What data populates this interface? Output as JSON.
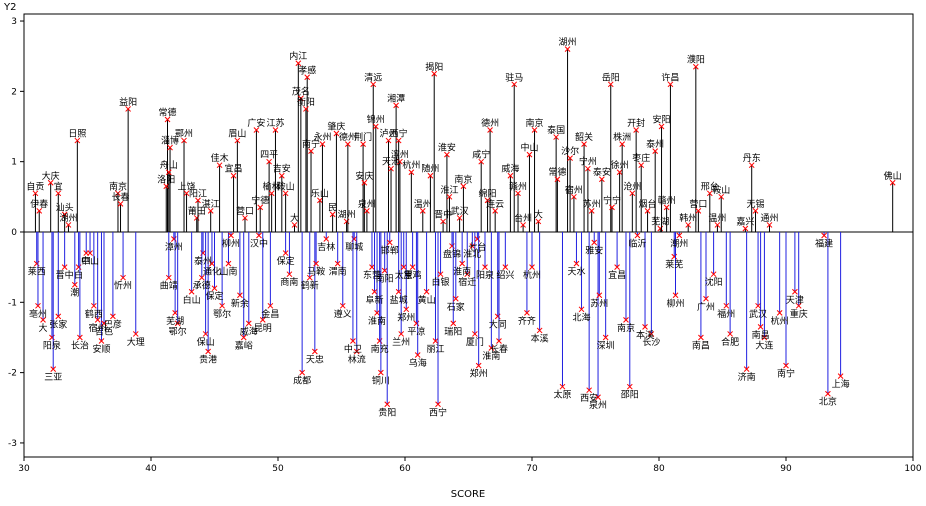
{
  "chart_data": {
    "type": "needle-scatter",
    "xlabel": "SCORE",
    "ylabel": "Y2",
    "xlim": [
      30,
      100
    ],
    "ylim": [
      -3.2,
      3.1
    ],
    "xticks": [
      "30",
      "40",
      "50",
      "60",
      "70",
      "80",
      "90",
      "100"
    ],
    "yticks": [
      "3",
      "2",
      "1",
      "0",
      "-1",
      "-2",
      "-3"
    ],
    "reference_line_y": 0,
    "grid": false,
    "colors": {
      "positive": "#000000",
      "negative": "#2020e0",
      "marker": "#ff0000"
    },
    "points": [
      {
        "x": 30.9,
        "y": 0.55,
        "label": "自贡"
      },
      {
        "x": 31.2,
        "y": 0.3,
        "label": "伊春"
      },
      {
        "x": 31.0,
        "y": -0.45,
        "label": "莱西"
      },
      {
        "x": 31.1,
        "y": -1.05,
        "label": "亳州"
      },
      {
        "x": 31.5,
        "y": -1.25,
        "label": "大"
      },
      {
        "x": 32.1,
        "y": 0.7,
        "label": "大庆"
      },
      {
        "x": 32.7,
        "y": 0.55,
        "label": "宜"
      },
      {
        "x": 32.2,
        "y": -1.5,
        "label": "阳泉"
      },
      {
        "x": 32.3,
        "y": -1.95,
        "label": "三亚"
      },
      {
        "x": 32.7,
        "y": -1.2,
        "label": "张家"
      },
      {
        "x": 33.2,
        "y": 0.25,
        "label": "汕头"
      },
      {
        "x": 33.2,
        "y": -0.5,
        "label": "晋中"
      },
      {
        "x": 33.5,
        "y": 0.1,
        "label": "湖州"
      },
      {
        "x": 34.2,
        "y": 1.3,
        "label": "日照"
      },
      {
        "x": 34.3,
        "y": -0.5,
        "label": "白"
      },
      {
        "x": 34.4,
        "y": -1.5,
        "label": "长治"
      },
      {
        "x": 34.0,
        "y": -0.75,
        "label": "潮"
      },
      {
        "x": 34.9,
        "y": -0.3,
        "label": "四"
      },
      {
        "x": 35.2,
        "y": -0.3,
        "label": "中山"
      },
      {
        "x": 35.5,
        "y": -1.05,
        "label": "鹤西"
      },
      {
        "x": 35.8,
        "y": -1.25,
        "label": "宿州"
      },
      {
        "x": 36.1,
        "y": -1.55,
        "label": "安顺"
      },
      {
        "x": 36.3,
        "y": -1.3,
        "label": "吉色"
      },
      {
        "x": 37.0,
        "y": -1.2,
        "label": "巴彦"
      },
      {
        "x": 37.4,
        "y": 0.55,
        "label": "南京"
      },
      {
        "x": 37.6,
        "y": 0.4,
        "label": "长春"
      },
      {
        "x": 37.8,
        "y": -0.65,
        "label": "忻州"
      },
      {
        "x": 38.2,
        "y": 1.75,
        "label": "益阳"
      },
      {
        "x": 38.8,
        "y": -1.45,
        "label": "大理"
      },
      {
        "x": 41.3,
        "y": 1.6,
        "label": "常德"
      },
      {
        "x": 41.2,
        "y": 0.65,
        "label": "洛阳"
      },
      {
        "x": 41.5,
        "y": 1.2,
        "label": "淄博"
      },
      {
        "x": 41.4,
        "y": 0.85,
        "label": "舟山"
      },
      {
        "x": 41.8,
        "y": -0.1,
        "label": "漳州"
      },
      {
        "x": 41.4,
        "y": -0.65,
        "label": "曲靖"
      },
      {
        "x": 41.9,
        "y": -1.15,
        "label": "芜湖"
      },
      {
        "x": 42.1,
        "y": -1.3,
        "label": "鄂尔"
      },
      {
        "x": 42.6,
        "y": 1.3,
        "label": "鄂州"
      },
      {
        "x": 42.8,
        "y": 0.55,
        "label": "上饶"
      },
      {
        "x": 43.2,
        "y": -0.85,
        "label": "白山"
      },
      {
        "x": 43.6,
        "y": 0.2,
        "label": "莆田"
      },
      {
        "x": 43.7,
        "y": 0.45,
        "label": "阳江"
      },
      {
        "x": 44.1,
        "y": -0.3,
        "label": "泰州"
      },
      {
        "x": 44.0,
        "y": -0.65,
        "label": "承德"
      },
      {
        "x": 44.3,
        "y": -1.45,
        "label": "保山"
      },
      {
        "x": 44.5,
        "y": -1.7,
        "label": "贵港"
      },
      {
        "x": 44.8,
        "y": -0.45,
        "label": "通化"
      },
      {
        "x": 44.7,
        "y": 0.3,
        "label": "湛江"
      },
      {
        "x": 45.4,
        "y": 0.95,
        "label": "佳木"
      },
      {
        "x": 45.0,
        "y": -0.8,
        "label": "保定"
      },
      {
        "x": 45.6,
        "y": -1.05,
        "label": "鄂尔"
      },
      {
        "x": 46.1,
        "y": -0.45,
        "label": "山南"
      },
      {
        "x": 46.3,
        "y": -0.05,
        "label": "柳州"
      },
      {
        "x": 46.8,
        "y": 1.3,
        "label": "眉山"
      },
      {
        "x": 46.5,
        "y": 0.8,
        "label": "宜昌"
      },
      {
        "x": 47.0,
        "y": -0.9,
        "label": "新余"
      },
      {
        "x": 47.3,
        "y": -1.5,
        "label": "嘉峪"
      },
      {
        "x": 47.4,
        "y": 0.2,
        "label": "营口"
      },
      {
        "x": 47.7,
        "y": -1.3,
        "label": "威海"
      },
      {
        "x": 48.3,
        "y": 1.45,
        "label": "广安"
      },
      {
        "x": 48.6,
        "y": 0.35,
        "label": "宁德"
      },
      {
        "x": 48.5,
        "y": -0.05,
        "label": "汉中"
      },
      {
        "x": 48.8,
        "y": -1.25,
        "label": "昆明"
      },
      {
        "x": 49.3,
        "y": 1.0,
        "label": "四平"
      },
      {
        "x": 49.5,
        "y": 0.55,
        "label": "榆林"
      },
      {
        "x": 49.4,
        "y": -1.05,
        "label": "金昌"
      },
      {
        "x": 49.8,
        "y": 1.45,
        "label": "江苏"
      },
      {
        "x": 50.3,
        "y": 0.8,
        "label": "吉安"
      },
      {
        "x": 50.6,
        "y": 0.55,
        "label": "鞍山"
      },
      {
        "x": 50.6,
        "y": -0.3,
        "label": "保定"
      },
      {
        "x": 50.9,
        "y": -0.6,
        "label": "商南"
      },
      {
        "x": 51.3,
        "y": 0.1,
        "label": "大"
      },
      {
        "x": 51.6,
        "y": 2.4,
        "label": "内江"
      },
      {
        "x": 51.8,
        "y": 1.9,
        "label": "茂名"
      },
      {
        "x": 51.9,
        "y": -2.0,
        "label": "成都"
      },
      {
        "x": 52.3,
        "y": 2.2,
        "label": "孝感"
      },
      {
        "x": 52.2,
        "y": 1.75,
        "label": "衡阳"
      },
      {
        "x": 52.6,
        "y": 1.15,
        "label": "南宁"
      },
      {
        "x": 52.5,
        "y": -0.65,
        "label": "鹤新"
      },
      {
        "x": 52.9,
        "y": -1.7,
        "label": "天忠"
      },
      {
        "x": 53.0,
        "y": -0.45,
        "label": "马鞍"
      },
      {
        "x": 53.3,
        "y": 0.45,
        "label": "乐山"
      },
      {
        "x": 53.5,
        "y": 1.25,
        "label": "永州"
      },
      {
        "x": 53.8,
        "y": -0.1,
        "label": "吉林"
      },
      {
        "x": 54.3,
        "y": 0.25,
        "label": "民"
      },
      {
        "x": 54.6,
        "y": 1.4,
        "label": "肇庆"
      },
      {
        "x": 54.7,
        "y": -0.45,
        "label": "渭南"
      },
      {
        "x": 55.1,
        "y": -1.05,
        "label": "遵义"
      },
      {
        "x": 55.4,
        "y": 0.15,
        "label": "湖州"
      },
      {
        "x": 55.5,
        "y": 1.25,
        "label": "德州"
      },
      {
        "x": 56.0,
        "y": -0.1,
        "label": "聊城"
      },
      {
        "x": 55.9,
        "y": -1.55,
        "label": "中卫"
      },
      {
        "x": 56.2,
        "y": -1.7,
        "label": "林流"
      },
      {
        "x": 56.7,
        "y": 1.25,
        "label": "荆门"
      },
      {
        "x": 56.8,
        "y": 0.7,
        "label": "安庆"
      },
      {
        "x": 57.0,
        "y": 0.3,
        "label": "泉州"
      },
      {
        "x": 57.5,
        "y": 2.1,
        "label": "清远"
      },
      {
        "x": 57.7,
        "y": 1.5,
        "label": "锦州"
      },
      {
        "x": 57.4,
        "y": -0.5,
        "label": "东营"
      },
      {
        "x": 57.6,
        "y": -0.85,
        "label": "阜新"
      },
      {
        "x": 57.8,
        "y": -1.15,
        "label": "淮南"
      },
      {
        "x": 58.0,
        "y": -1.55,
        "label": "南充"
      },
      {
        "x": 58.1,
        "y": -2.0,
        "label": "铜川"
      },
      {
        "x": 58.4,
        "y": -0.55,
        "label": "南阳"
      },
      {
        "x": 58.6,
        "y": -2.45,
        "label": "贵阳"
      },
      {
        "x": 58.7,
        "y": 1.3,
        "label": "泸州"
      },
      {
        "x": 58.9,
        "y": 0.9,
        "label": "天池"
      },
      {
        "x": 58.8,
        "y": -0.15,
        "label": "邯郸"
      },
      {
        "x": 59.3,
        "y": 1.8,
        "label": "湘潭"
      },
      {
        "x": 59.5,
        "y": 1.3,
        "label": "西宁"
      },
      {
        "x": 59.6,
        "y": 1.0,
        "label": "滨州"
      },
      {
        "x": 59.5,
        "y": -0.85,
        "label": "盐城"
      },
      {
        "x": 59.7,
        "y": -1.45,
        "label": "兰州"
      },
      {
        "x": 59.9,
        "y": -0.5,
        "label": "太原"
      },
      {
        "x": 60.1,
        "y": -1.1,
        "label": "郑州"
      },
      {
        "x": 60.5,
        "y": 0.85,
        "label": "杭州"
      },
      {
        "x": 60.6,
        "y": -0.5,
        "label": "宝鸡"
      },
      {
        "x": 60.9,
        "y": -1.3,
        "label": "平凉"
      },
      {
        "x": 61.0,
        "y": -1.75,
        "label": "乌海"
      },
      {
        "x": 61.4,
        "y": 0.3,
        "label": "温州"
      },
      {
        "x": 61.7,
        "y": -0.85,
        "label": "黄山"
      },
      {
        "x": 62.0,
        "y": 0.8,
        "label": "随州"
      },
      {
        "x": 62.3,
        "y": 2.25,
        "label": "揭阳"
      },
      {
        "x": 62.4,
        "y": -1.55,
        "label": "丽江"
      },
      {
        "x": 62.6,
        "y": -2.45,
        "label": "西宁"
      },
      {
        "x": 62.8,
        "y": -0.6,
        "label": "白银"
      },
      {
        "x": 63.0,
        "y": 0.15,
        "label": "晋中"
      },
      {
        "x": 63.3,
        "y": 1.1,
        "label": "淮安"
      },
      {
        "x": 63.5,
        "y": 0.5,
        "label": "淮江"
      },
      {
        "x": 63.7,
        "y": -0.2,
        "label": "盘锦"
      },
      {
        "x": 63.8,
        "y": -1.3,
        "label": "瑞阳"
      },
      {
        "x": 64.0,
        "y": -0.95,
        "label": "石家"
      },
      {
        "x": 64.3,
        "y": 0.2,
        "label": "武汉"
      },
      {
        "x": 64.5,
        "y": -0.45,
        "label": "淮南"
      },
      {
        "x": 64.6,
        "y": 0.65,
        "label": "南京"
      },
      {
        "x": 64.9,
        "y": -0.6,
        "label": "宿迁"
      },
      {
        "x": 65.3,
        "y": -0.2,
        "label": "淮北"
      },
      {
        "x": 65.5,
        "y": -1.45,
        "label": "厦门"
      },
      {
        "x": 65.7,
        "y": -0.1,
        "label": "七台"
      },
      {
        "x": 65.8,
        "y": -1.9,
        "label": "郑州"
      },
      {
        "x": 66.0,
        "y": 1.0,
        "label": "咸宁"
      },
      {
        "x": 66.3,
        "y": -0.5,
        "label": "阳泉"
      },
      {
        "x": 66.5,
        "y": 0.45,
        "label": "绵阳"
      },
      {
        "x": 66.7,
        "y": 1.45,
        "label": "德州"
      },
      {
        "x": 66.8,
        "y": -1.65,
        "label": "淮南"
      },
      {
        "x": 67.1,
        "y": 0.3,
        "label": "连云"
      },
      {
        "x": 67.3,
        "y": -1.2,
        "label": "大同"
      },
      {
        "x": 67.4,
        "y": -1.55,
        "label": "长春"
      },
      {
        "x": 67.9,
        "y": -0.5,
        "label": "绍兴"
      },
      {
        "x": 68.3,
        "y": 0.8,
        "label": "威海"
      },
      {
        "x": 68.6,
        "y": 2.1,
        "label": "驻马"
      },
      {
        "x": 68.9,
        "y": 0.55,
        "label": "赣州"
      },
      {
        "x": 69.3,
        "y": 0.1,
        "label": "台州"
      },
      {
        "x": 69.6,
        "y": -1.15,
        "label": "齐齐"
      },
      {
        "x": 69.8,
        "y": 1.1,
        "label": "中山"
      },
      {
        "x": 70.0,
        "y": -0.5,
        "label": "杭州"
      },
      {
        "x": 70.2,
        "y": 1.45,
        "label": "南京"
      },
      {
        "x": 70.5,
        "y": 0.15,
        "label": "大"
      },
      {
        "x": 70.6,
        "y": -1.4,
        "label": "本溪"
      },
      {
        "x": 71.9,
        "y": 1.35,
        "label": "泰国"
      },
      {
        "x": 72.0,
        "y": 0.75,
        "label": "常德"
      },
      {
        "x": 72.4,
        "y": -2.2,
        "label": "太原"
      },
      {
        "x": 72.8,
        "y": 2.6,
        "label": "湖州"
      },
      {
        "x": 73.0,
        "y": 1.05,
        "label": "沙尔"
      },
      {
        "x": 73.3,
        "y": 0.5,
        "label": "宿州"
      },
      {
        "x": 73.5,
        "y": -0.45,
        "label": "天水"
      },
      {
        "x": 73.9,
        "y": -1.1,
        "label": "北海"
      },
      {
        "x": 74.1,
        "y": 1.25,
        "label": "韶关"
      },
      {
        "x": 74.4,
        "y": 0.9,
        "label": "宁州"
      },
      {
        "x": 74.5,
        "y": -2.25,
        "label": "西安"
      },
      {
        "x": 74.7,
        "y": 0.3,
        "label": "苏州"
      },
      {
        "x": 74.9,
        "y": -0.15,
        "label": "雅安"
      },
      {
        "x": 75.2,
        "y": -2.35,
        "label": "泉州"
      },
      {
        "x": 75.3,
        "y": -0.9,
        "label": "苏州"
      },
      {
        "x": 75.5,
        "y": 0.75,
        "label": "泰安"
      },
      {
        "x": 75.8,
        "y": -1.5,
        "label": "深圳"
      },
      {
        "x": 76.2,
        "y": 2.1,
        "label": "岳阳"
      },
      {
        "x": 76.3,
        "y": 0.35,
        "label": "宁宁"
      },
      {
        "x": 76.7,
        "y": -0.5,
        "label": "宜昌"
      },
      {
        "x": 76.9,
        "y": 0.85,
        "label": "徐州"
      },
      {
        "x": 77.1,
        "y": 1.25,
        "label": "株洲"
      },
      {
        "x": 77.4,
        "y": -1.25,
        "label": "南京"
      },
      {
        "x": 77.7,
        "y": -2.2,
        "label": "邵阳"
      },
      {
        "x": 77.9,
        "y": 0.55,
        "label": "沧州"
      },
      {
        "x": 78.2,
        "y": 1.45,
        "label": "开封"
      },
      {
        "x": 78.3,
        "y": -0.05,
        "label": "临沂"
      },
      {
        "x": 78.6,
        "y": 0.95,
        "label": "枣庄"
      },
      {
        "x": 78.9,
        "y": -1.35,
        "label": "本溪"
      },
      {
        "x": 79.1,
        "y": 0.3,
        "label": "烟台"
      },
      {
        "x": 79.4,
        "y": -1.45,
        "label": "长沙"
      },
      {
        "x": 79.7,
        "y": 1.15,
        "label": "泰州"
      },
      {
        "x": 80.1,
        "y": 0.05,
        "label": "芜湖"
      },
      {
        "x": 80.2,
        "y": 1.5,
        "label": "安阳"
      },
      {
        "x": 80.6,
        "y": 0.35,
        "label": "赣州"
      },
      {
        "x": 80.9,
        "y": 2.1,
        "label": "许昌"
      },
      {
        "x": 81.2,
        "y": -0.35,
        "label": "莱芜"
      },
      {
        "x": 81.3,
        "y": -0.9,
        "label": "柳州"
      },
      {
        "x": 81.6,
        "y": -0.05,
        "label": "潮州"
      },
      {
        "x": 82.3,
        "y": 0.1,
        "label": "韩州"
      },
      {
        "x": 82.9,
        "y": 2.35,
        "label": "濮阳"
      },
      {
        "x": 83.1,
        "y": 0.3,
        "label": "营口"
      },
      {
        "x": 83.3,
        "y": -1.5,
        "label": "南昌"
      },
      {
        "x": 83.7,
        "y": -0.95,
        "label": "广州"
      },
      {
        "x": 84.0,
        "y": 0.55,
        "label": "邢台"
      },
      {
        "x": 84.3,
        "y": -0.6,
        "label": "沈阳"
      },
      {
        "x": 84.6,
        "y": 0.1,
        "label": "温州"
      },
      {
        "x": 84.9,
        "y": 0.5,
        "label": "鞍山"
      },
      {
        "x": 85.3,
        "y": -1.05,
        "label": "福州"
      },
      {
        "x": 85.6,
        "y": -1.45,
        "label": "合肥"
      },
      {
        "x": 86.8,
        "y": 0.05,
        "label": "嘉兴"
      },
      {
        "x": 86.9,
        "y": -1.95,
        "label": "济南"
      },
      {
        "x": 87.3,
        "y": 0.95,
        "label": "丹东"
      },
      {
        "x": 87.6,
        "y": 0.3,
        "label": "无锡"
      },
      {
        "x": 87.8,
        "y": -1.05,
        "label": "武汉"
      },
      {
        "x": 88.0,
        "y": -1.35,
        "label": "南昌"
      },
      {
        "x": 88.3,
        "y": -1.5,
        "label": "大连"
      },
      {
        "x": 88.7,
        "y": 0.1,
        "label": "通州"
      },
      {
        "x": 89.5,
        "y": -1.15,
        "label": "杭州"
      },
      {
        "x": 90.0,
        "y": -1.9,
        "label": "南宁"
      },
      {
        "x": 90.7,
        "y": -0.85,
        "label": "天津"
      },
      {
        "x": 91.0,
        "y": -1.05,
        "label": "重庆"
      },
      {
        "x": 93.0,
        "y": -0.05,
        "label": "福建"
      },
      {
        "x": 93.3,
        "y": -2.3,
        "label": "北京"
      },
      {
        "x": 94.3,
        "y": -2.05,
        "label": "上海"
      },
      {
        "x": 98.4,
        "y": 0.7,
        "label": "佛山"
      }
    ]
  }
}
